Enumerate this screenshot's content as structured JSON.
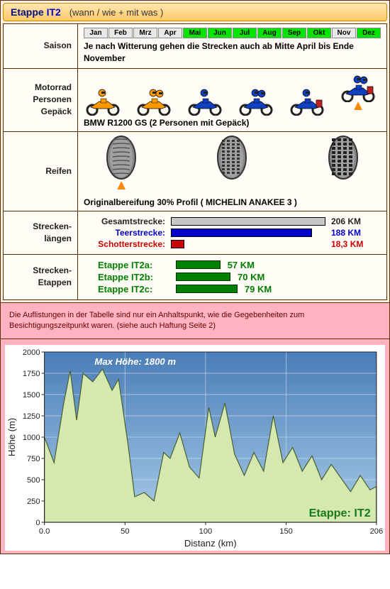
{
  "title": {
    "prefix": "Etappe ",
    "code": "IT2",
    "subtitle": "(wann / wie + mit was )"
  },
  "rows": {
    "saison": {
      "label": "Saison",
      "months": [
        {
          "l": "Jan",
          "on": false
        },
        {
          "l": "Feb",
          "on": false
        },
        {
          "l": "Mrz",
          "on": false
        },
        {
          "l": "Apr",
          "on": false
        },
        {
          "l": "Mai",
          "on": true
        },
        {
          "l": "Jun",
          "on": true
        },
        {
          "l": "Jul",
          "on": true
        },
        {
          "l": "Aug",
          "on": true
        },
        {
          "l": "Sep",
          "on": true
        },
        {
          "l": "Okt",
          "on": true
        },
        {
          "l": "Nov",
          "on": false
        },
        {
          "l": "Dez",
          "on": true
        }
      ],
      "text": "Je nach Witterung gehen die Strecken auch ab Mitte April bis Ende November"
    },
    "motorrad": {
      "label": "Motorrad\nPersonen\nGepäck",
      "text": "BMW R1200 GS  (2 Personen mit Gepäck)",
      "bike_colors": {
        "orange_body": "#ff9900",
        "orange_helmet": "#ff9900",
        "blue_body": "#1040c0",
        "blue_helmet": "#1040c0",
        "wheel": "#222222",
        "luggage": "#c02020"
      },
      "selected_index": 5
    },
    "reifen": {
      "label": "Reifen",
      "text": "Originalbereifung  30% Profil ( MICHELIN ANAKEE 3 )",
      "selected_index": 0
    },
    "strecken": {
      "label": "Strecken-\nlängen",
      "max": 206,
      "rows": [
        {
          "label": "Gesamtstrecke:",
          "value": 206,
          "text": "206 KM",
          "color_label": "#222",
          "color_bar": "#c8c8c8",
          "color_text": "#222"
        },
        {
          "label": "Teerstrecke:",
          "value": 188,
          "text": "188 KM",
          "color_label": "#0000cc",
          "color_bar": "#0000cc",
          "color_text": "#0000cc"
        },
        {
          "label": "Schotterstrecke:",
          "value": 18.3,
          "text": "18,3 KM",
          "color_label": "#cc0000",
          "color_bar": "#cc0000",
          "color_text": "#cc0000"
        }
      ]
    },
    "etappen": {
      "label": "Strecken-\nEtappen",
      "bar_max": 100,
      "rows": [
        {
          "label": "Etappe IT2a:",
          "value": 57,
          "text": "57 KM"
        },
        {
          "label": "Etappe IT2b:",
          "value": 70,
          "text": "70 KM"
        },
        {
          "label": "Etappe IT2c:",
          "value": 79,
          "text": "79 KM"
        }
      ]
    }
  },
  "disclaimer": "Die Auflistungen in der Tabelle sind nur ein Anhaltspunkt, wie die Gegebenheiten zum Besichtigungszeitpunkt waren. (siehe auch Haftung Seite 2)",
  "chart": {
    "ylabel": "Höhe   (m)",
    "xlabel": "Distanz   (km)",
    "max_label": "Max Höhe: 1800 m",
    "etappe_label": "Etappe: IT2",
    "xlim": [
      0,
      206
    ],
    "ylim": [
      0,
      2000
    ],
    "ytick_step": 250,
    "xticks": [
      0,
      50,
      100,
      150,
      206
    ],
    "xticklabels": [
      "0.0",
      "50",
      "100",
      "150",
      "206"
    ],
    "sky_gradient": [
      "#4a7db8",
      "#a8cce8"
    ],
    "mountain_fill": "#d4e8b0",
    "mountain_stroke": "#4a6030",
    "grid_color": "#c4d4e4",
    "text_color": "#204020",
    "label_fontsize": 13,
    "tick_fontsize": 11,
    "profile": [
      [
        0,
        1000
      ],
      [
        6,
        700
      ],
      [
        12,
        1400
      ],
      [
        16,
        1780
      ],
      [
        20,
        1200
      ],
      [
        24,
        1750
      ],
      [
        30,
        1650
      ],
      [
        36,
        1800
      ],
      [
        42,
        1550
      ],
      [
        46,
        1680
      ],
      [
        52,
        900
      ],
      [
        56,
        300
      ],
      [
        62,
        350
      ],
      [
        68,
        250
      ],
      [
        74,
        820
      ],
      [
        78,
        750
      ],
      [
        84,
        1050
      ],
      [
        90,
        650
      ],
      [
        96,
        520
      ],
      [
        102,
        1350
      ],
      [
        106,
        1000
      ],
      [
        112,
        1400
      ],
      [
        118,
        800
      ],
      [
        124,
        550
      ],
      [
        130,
        820
      ],
      [
        136,
        600
      ],
      [
        142,
        1250
      ],
      [
        148,
        700
      ],
      [
        154,
        880
      ],
      [
        160,
        600
      ],
      [
        166,
        780
      ],
      [
        172,
        500
      ],
      [
        178,
        680
      ],
      [
        184,
        520
      ],
      [
        190,
        360
      ],
      [
        196,
        550
      ],
      [
        202,
        380
      ],
      [
        206,
        420
      ]
    ]
  }
}
